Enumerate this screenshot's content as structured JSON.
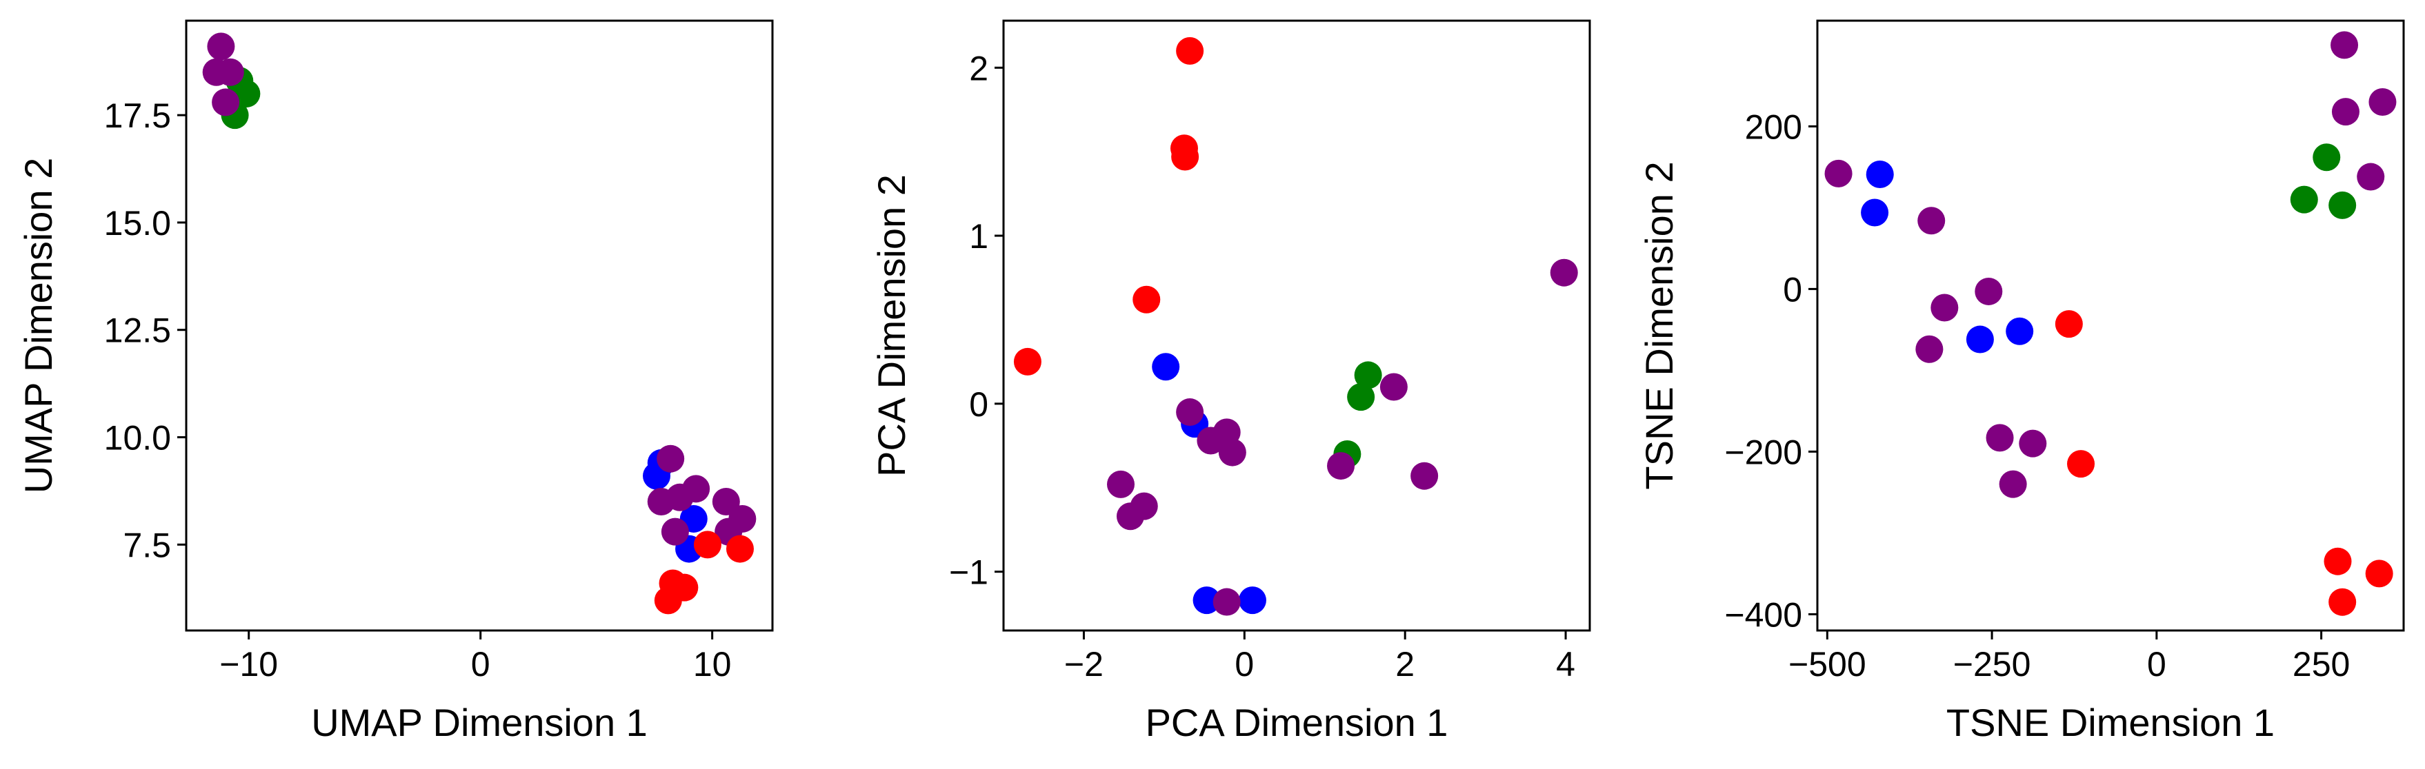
{
  "chart_data": [
    {
      "type": "scatter",
      "xlabel": "UMAP Dimension 1",
      "ylabel": "UMAP Dimension 2",
      "xlim": [
        -12.7,
        12.6
      ],
      "ylim": [
        5.5,
        19.7
      ],
      "xticks": [
        {
          "v": -10,
          "label": "−10"
        },
        {
          "v": 0,
          "label": "0"
        },
        {
          "v": 10,
          "label": "10"
        }
      ],
      "yticks": [
        {
          "v": 7.5,
          "label": "7.5"
        },
        {
          "v": 10.0,
          "label": "10.0"
        },
        {
          "v": 12.5,
          "label": "12.5"
        },
        {
          "v": 15.0,
          "label": "15.0"
        },
        {
          "v": 17.5,
          "label": "17.5"
        }
      ],
      "grid": false,
      "points": [
        {
          "x": -10.4,
          "y": 18.3,
          "color": "green"
        },
        {
          "x": -10.1,
          "y": 18.0,
          "color": "green"
        },
        {
          "x": -10.6,
          "y": 17.5,
          "color": "green"
        },
        {
          "x": -11.4,
          "y": 18.5,
          "color": "purple"
        },
        {
          "x": -11.2,
          "y": 19.1,
          "color": "purple"
        },
        {
          "x": -11.0,
          "y": 17.8,
          "color": "purple"
        },
        {
          "x": -10.8,
          "y": 18.5,
          "color": "purple"
        },
        {
          "x": 7.8,
          "y": 9.4,
          "color": "blue"
        },
        {
          "x": 7.6,
          "y": 9.1,
          "color": "blue"
        },
        {
          "x": 9.2,
          "y": 8.1,
          "color": "blue"
        },
        {
          "x": 9.0,
          "y": 7.4,
          "color": "blue"
        },
        {
          "x": 8.2,
          "y": 9.5,
          "color": "purple"
        },
        {
          "x": 7.8,
          "y": 8.5,
          "color": "purple"
        },
        {
          "x": 8.6,
          "y": 8.6,
          "color": "purple"
        },
        {
          "x": 9.3,
          "y": 8.8,
          "color": "purple"
        },
        {
          "x": 8.4,
          "y": 7.8,
          "color": "purple"
        },
        {
          "x": 10.6,
          "y": 8.5,
          "color": "purple"
        },
        {
          "x": 11.3,
          "y": 8.1,
          "color": "purple"
        },
        {
          "x": 10.7,
          "y": 7.8,
          "color": "purple"
        },
        {
          "x": 9.8,
          "y": 7.5,
          "color": "red"
        },
        {
          "x": 11.2,
          "y": 7.4,
          "color": "red"
        },
        {
          "x": 8.3,
          "y": 6.6,
          "color": "red"
        },
        {
          "x": 8.8,
          "y": 6.5,
          "color": "red"
        },
        {
          "x": 8.1,
          "y": 6.2,
          "color": "red"
        }
      ]
    },
    {
      "type": "scatter",
      "xlabel": "PCA Dimension 1",
      "ylabel": "PCA Dimension 2",
      "xlim": [
        -3.0,
        4.3
      ],
      "ylim": [
        -1.35,
        2.28
      ],
      "xticks": [
        {
          "v": -2,
          "label": "−2"
        },
        {
          "v": 0,
          "label": "0"
        },
        {
          "v": 2,
          "label": "2"
        },
        {
          "v": 4,
          "label": "4"
        }
      ],
      "yticks": [
        {
          "v": -1,
          "label": "−1"
        },
        {
          "v": 0,
          "label": "0"
        },
        {
          "v": 1,
          "label": "1"
        },
        {
          "v": 2,
          "label": "2"
        }
      ],
      "grid": false,
      "points": [
        {
          "x": -0.68,
          "y": 2.1,
          "color": "red"
        },
        {
          "x": -0.75,
          "y": 1.52,
          "color": "red"
        },
        {
          "x": -0.74,
          "y": 1.47,
          "color": "red"
        },
        {
          "x": -1.22,
          "y": 0.62,
          "color": "red"
        },
        {
          "x": -2.7,
          "y": 0.25,
          "color": "red"
        },
        {
          "x": -0.98,
          "y": 0.22,
          "color": "blue"
        },
        {
          "x": -0.62,
          "y": -0.12,
          "color": "blue"
        },
        {
          "x": -0.47,
          "y": -1.17,
          "color": "blue"
        },
        {
          "x": 0.1,
          "y": -1.17,
          "color": "blue"
        },
        {
          "x": 1.54,
          "y": 0.17,
          "color": "green"
        },
        {
          "x": 1.45,
          "y": 0.04,
          "color": "green"
        },
        {
          "x": 1.28,
          "y": -0.3,
          "color": "green"
        },
        {
          "x": 3.98,
          "y": 0.78,
          "color": "purple"
        },
        {
          "x": 1.86,
          "y": 0.1,
          "color": "purple"
        },
        {
          "x": 2.24,
          "y": -0.43,
          "color": "purple"
        },
        {
          "x": 1.2,
          "y": -0.37,
          "color": "purple"
        },
        {
          "x": -0.68,
          "y": -0.05,
          "color": "purple"
        },
        {
          "x": -0.22,
          "y": -0.17,
          "color": "purple"
        },
        {
          "x": -0.42,
          "y": -0.22,
          "color": "purple"
        },
        {
          "x": -0.15,
          "y": -0.29,
          "color": "purple"
        },
        {
          "x": -1.54,
          "y": -0.48,
          "color": "purple"
        },
        {
          "x": -1.25,
          "y": -0.61,
          "color": "purple"
        },
        {
          "x": -1.42,
          "y": -0.67,
          "color": "purple"
        },
        {
          "x": -0.22,
          "y": -1.18,
          "color": "purple"
        }
      ]
    },
    {
      "type": "scatter",
      "xlabel": "TSNE Dimension 1",
      "ylabel": "TSNE Dimension 2",
      "xlim": [
        -515,
        375
      ],
      "ylim": [
        -420,
        330
      ],
      "xticks": [
        {
          "v": -500,
          "label": "−500"
        },
        {
          "v": -250,
          "label": "−250"
        },
        {
          "v": 0,
          "label": "0"
        },
        {
          "v": 250,
          "label": "250"
        }
      ],
      "yticks": [
        {
          "v": -400,
          "label": "−400"
        },
        {
          "v": -200,
          "label": "−200"
        },
        {
          "v": 0,
          "label": "0"
        },
        {
          "v": 200,
          "label": "200"
        }
      ],
      "grid": false,
      "points": [
        {
          "x": 285,
          "y": 300,
          "color": "purple"
        },
        {
          "x": 343,
          "y": 230,
          "color": "purple"
        },
        {
          "x": 287,
          "y": 218,
          "color": "purple"
        },
        {
          "x": 325,
          "y": 138,
          "color": "purple"
        },
        {
          "x": 258,
          "y": 162,
          "color": "green"
        },
        {
          "x": 224,
          "y": 110,
          "color": "green"
        },
        {
          "x": 282,
          "y": 103,
          "color": "green"
        },
        {
          "x": -483,
          "y": 142,
          "color": "purple"
        },
        {
          "x": -420,
          "y": 141,
          "color": "blue"
        },
        {
          "x": -428,
          "y": 94,
          "color": "blue"
        },
        {
          "x": -342,
          "y": 84,
          "color": "purple"
        },
        {
          "x": -255,
          "y": -3,
          "color": "purple"
        },
        {
          "x": -322,
          "y": -23,
          "color": "purple"
        },
        {
          "x": -268,
          "y": -62,
          "color": "blue"
        },
        {
          "x": -208,
          "y": -52,
          "color": "blue"
        },
        {
          "x": -133,
          "y": -43,
          "color": "red"
        },
        {
          "x": -345,
          "y": -74,
          "color": "purple"
        },
        {
          "x": -238,
          "y": -183,
          "color": "purple"
        },
        {
          "x": -188,
          "y": -190,
          "color": "purple"
        },
        {
          "x": -218,
          "y": -240,
          "color": "purple"
        },
        {
          "x": -115,
          "y": -215,
          "color": "red"
        },
        {
          "x": 275,
          "y": -335,
          "color": "red"
        },
        {
          "x": 338,
          "y": -350,
          "color": "red"
        },
        {
          "x": 282,
          "y": -385,
          "color": "red"
        }
      ]
    }
  ]
}
